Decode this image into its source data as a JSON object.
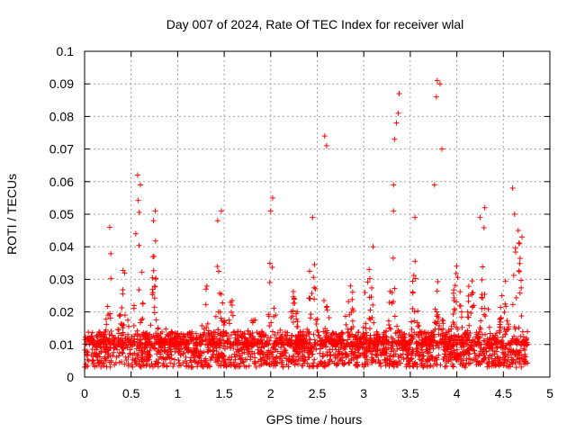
{
  "chart_data": {
    "type": "scatter",
    "title": "Day 007 of 2024, Rate Of TEC Index for receiver wlal",
    "xlabel": "GPS time / hours",
    "ylabel": "ROTI / TECUs",
    "xlim": [
      0,
      5
    ],
    "ylim": [
      0,
      0.1
    ],
    "xticks": [
      "0",
      "0.5",
      "1",
      "1.5",
      "2",
      "2.5",
      "3",
      "3.5",
      "4",
      "4.5",
      "5"
    ],
    "yticks": [
      "0",
      "0.01",
      "0.02",
      "0.03",
      "0.04",
      "0.05",
      "0.06",
      "0.07",
      "0.08",
      "0.09",
      "0.1"
    ],
    "grid": true,
    "marker": "plus",
    "color": "#ff0000",
    "data_x_range": [
      0,
      4.76
    ],
    "series": [
      {
        "name": "ROTI",
        "baseline_band": [
          0.003,
          0.015
        ],
        "notable_points": [
          {
            "x": 0.57,
            "y": 0.062
          },
          {
            "x": 0.6,
            "y": 0.059
          },
          {
            "x": 0.76,
            "y": 0.051
          },
          {
            "x": 0.74,
            "y": 0.048
          },
          {
            "x": 0.27,
            "y": 0.046
          },
          {
            "x": 0.55,
            "y": 0.044
          },
          {
            "x": 1.47,
            "y": 0.051
          },
          {
            "x": 1.43,
            "y": 0.048
          },
          {
            "x": 2.02,
            "y": 0.055
          },
          {
            "x": 2.0,
            "y": 0.051
          },
          {
            "x": 2.45,
            "y": 0.049
          },
          {
            "x": 2.58,
            "y": 0.074
          },
          {
            "x": 2.6,
            "y": 0.071
          },
          {
            "x": 3.32,
            "y": 0.059
          },
          {
            "x": 3.33,
            "y": 0.073
          },
          {
            "x": 3.35,
            "y": 0.078
          },
          {
            "x": 3.37,
            "y": 0.081
          },
          {
            "x": 3.38,
            "y": 0.087
          },
          {
            "x": 3.32,
            "y": 0.051
          },
          {
            "x": 3.55,
            "y": 0.049
          },
          {
            "x": 3.78,
            "y": 0.086
          },
          {
            "x": 3.79,
            "y": 0.091
          },
          {
            "x": 3.82,
            "y": 0.09
          },
          {
            "x": 3.84,
            "y": 0.07
          },
          {
            "x": 3.76,
            "y": 0.059
          },
          {
            "x": 4.25,
            "y": 0.049
          },
          {
            "x": 4.3,
            "y": 0.052
          },
          {
            "x": 4.6,
            "y": 0.058
          },
          {
            "x": 4.62,
            "y": 0.05
          },
          {
            "x": 4.66,
            "y": 0.045
          },
          {
            "x": 4.7,
            "y": 0.043
          },
          {
            "x": 3.1,
            "y": 0.04
          }
        ]
      }
    ]
  }
}
